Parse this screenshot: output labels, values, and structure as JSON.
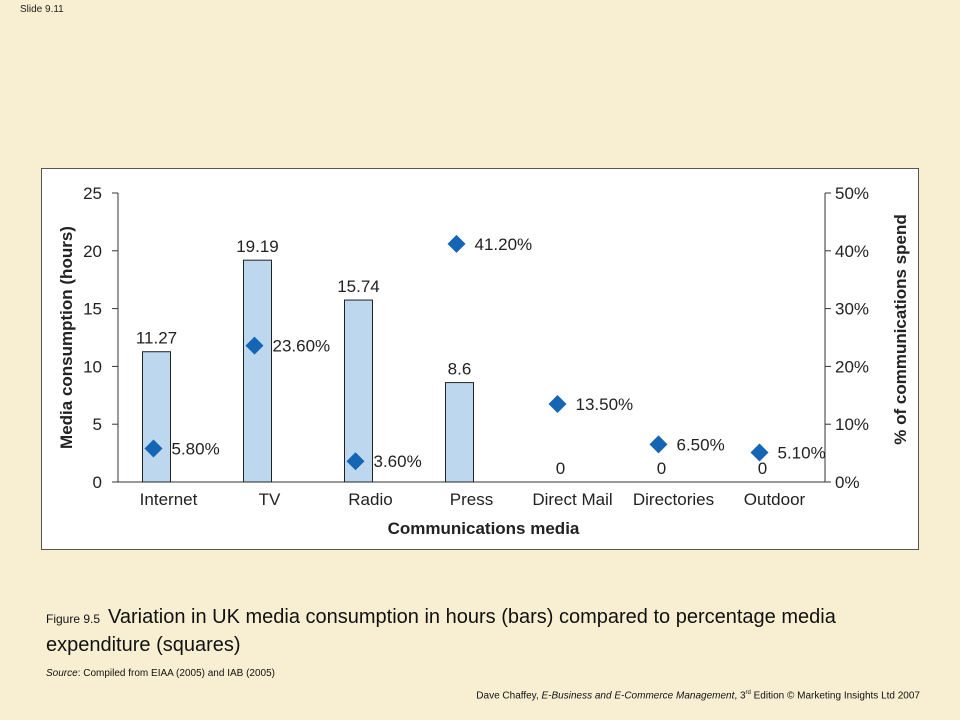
{
  "slide_label": "Slide 9.11",
  "caption": {
    "figure_number": "Figure 9.5",
    "text": "Variation in UK media consumption in hours (bars) compared to percentage media expenditure (squares)"
  },
  "source": {
    "label": "Source",
    "text": ": Compiled from EIAA (2005) and IAB (2005)"
  },
  "footer": {
    "author": "Dave Chaffey, ",
    "book_title": "E-Business and E-Commerce Management",
    "edition_prefix": ", 3",
    "edition_sup": "rd",
    "rest": " Edition © Marketing Insights Ltd 2007"
  },
  "chart_data": {
    "type": "bar",
    "categories": [
      "Internet",
      "TV",
      "Radio",
      "Press",
      "Direct Mail",
      "Directories",
      "Outdoor"
    ],
    "xlabel": "Communications media",
    "ylabel": "Media consumption (hours)",
    "y2label": "% of communications spend",
    "ylim": [
      0,
      25
    ],
    "y2lim": [
      0,
      50
    ],
    "yticks": [
      "0",
      "5",
      "10",
      "15",
      "20",
      "25"
    ],
    "y2ticks": [
      "0%",
      "10%",
      "20%",
      "30%",
      "40%",
      "50%"
    ],
    "series": [
      {
        "type": "bar",
        "axis": "left",
        "values": [
          11.27,
          19.19,
          15.74,
          8.6,
          0,
          0,
          0
        ],
        "labels": [
          "11.27",
          "19.19",
          "15.74",
          "8.6",
          "0",
          "0",
          "0"
        ],
        "color": "#bdd7ee"
      },
      {
        "type": "scatter",
        "axis": "right",
        "marker": "diamond",
        "values": [
          5.8,
          23.6,
          3.6,
          41.2,
          13.5,
          6.5,
          5.1
        ],
        "labels": [
          "5.80%",
          "23.60%",
          "3.60%",
          "41.20%",
          "13.50%",
          "6.50%",
          "5.10%"
        ],
        "color": "#1565b5"
      }
    ],
    "grid": false
  }
}
